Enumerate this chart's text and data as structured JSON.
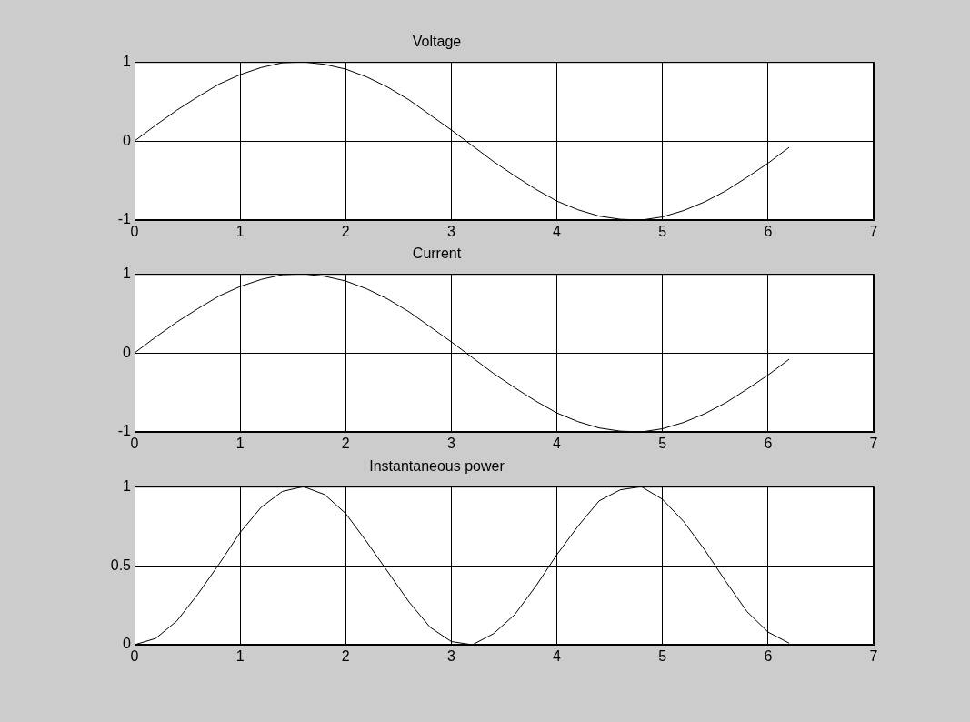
{
  "chart_data": [
    {
      "type": "line",
      "title": "Voltage",
      "x": [
        0,
        0.2,
        0.4,
        0.6,
        0.8,
        1,
        1.2,
        1.4,
        1.6,
        1.8,
        2,
        2.2,
        2.4,
        2.6,
        2.8,
        3,
        3.2,
        3.4,
        3.6,
        3.8,
        4,
        4.2,
        4.4,
        4.6,
        4.8,
        5,
        5.2,
        5.4,
        5.6,
        5.8,
        6,
        6.2
      ],
      "series": [
        {
          "color": "#000000",
          "values": [
            0,
            0.2,
            0.39,
            0.56,
            0.72,
            0.84,
            0.93,
            0.99,
            1,
            0.97,
            0.91,
            0.81,
            0.68,
            0.52,
            0.33,
            0.14,
            -0.06,
            -0.26,
            -0.44,
            -0.61,
            -0.76,
            -0.87,
            -0.95,
            -0.99,
            -1,
            -0.96,
            -0.88,
            -0.77,
            -0.63,
            -0.46,
            -0.28,
            -0.08
          ]
        }
      ],
      "xlim": [
        0,
        7
      ],
      "xticks": [
        0,
        1,
        2,
        3,
        4,
        5,
        6,
        7
      ],
      "ylim": [
        -1,
        1
      ],
      "yticks": [
        -1,
        0,
        1
      ],
      "grid": true,
      "marker": "none"
    },
    {
      "type": "line",
      "title": "Current",
      "x": [
        0,
        0.2,
        0.4,
        0.6,
        0.8,
        1,
        1.2,
        1.4,
        1.6,
        1.8,
        2,
        2.2,
        2.4,
        2.6,
        2.8,
        3,
        3.2,
        3.4,
        3.6,
        3.8,
        4,
        4.2,
        4.4,
        4.6,
        4.8,
        5,
        5.2,
        5.4,
        5.6,
        5.8,
        6,
        6.2
      ],
      "series": [
        {
          "color": "#000000",
          "values": [
            0,
            0.2,
            0.39,
            0.56,
            0.72,
            0.84,
            0.93,
            0.99,
            1,
            0.97,
            0.91,
            0.81,
            0.68,
            0.52,
            0.33,
            0.14,
            -0.06,
            -0.26,
            -0.44,
            -0.61,
            -0.76,
            -0.87,
            -0.95,
            -0.99,
            -1,
            -0.96,
            -0.88,
            -0.77,
            -0.63,
            -0.46,
            -0.28,
            -0.08
          ]
        }
      ],
      "xlim": [
        0,
        7
      ],
      "xticks": [
        0,
        1,
        2,
        3,
        4,
        5,
        6,
        7
      ],
      "ylim": [
        -1,
        1
      ],
      "yticks": [
        -1,
        0,
        1
      ],
      "grid": true,
      "marker": "none"
    },
    {
      "type": "line",
      "title": "Instantaneous power",
      "x": [
        0,
        0.2,
        0.4,
        0.6,
        0.8,
        1,
        1.2,
        1.4,
        1.6,
        1.8,
        2,
        2.2,
        2.4,
        2.6,
        2.8,
        3,
        3.2,
        3.4,
        3.6,
        3.8,
        4,
        4.2,
        4.4,
        4.6,
        4.8,
        5,
        5.2,
        5.4,
        5.6,
        5.8,
        6,
        6.2
      ],
      "series": [
        {
          "color": "#000000",
          "values": [
            0,
            0.04,
            0.15,
            0.32,
            0.51,
            0.71,
            0.87,
            0.97,
            1,
            0.95,
            0.83,
            0.65,
            0.46,
            0.27,
            0.11,
            0.02,
            0,
            0.07,
            0.19,
            0.37,
            0.57,
            0.75,
            0.91,
            0.98,
            1,
            0.92,
            0.78,
            0.6,
            0.4,
            0.21,
            0.08,
            0.01
          ]
        }
      ],
      "xlim": [
        0,
        7
      ],
      "xticks": [
        0,
        1,
        2,
        3,
        4,
        5,
        6,
        7
      ],
      "ylim": [
        0,
        1
      ],
      "yticks": [
        0,
        0.5,
        1
      ],
      "grid": true,
      "marker": "none"
    }
  ]
}
